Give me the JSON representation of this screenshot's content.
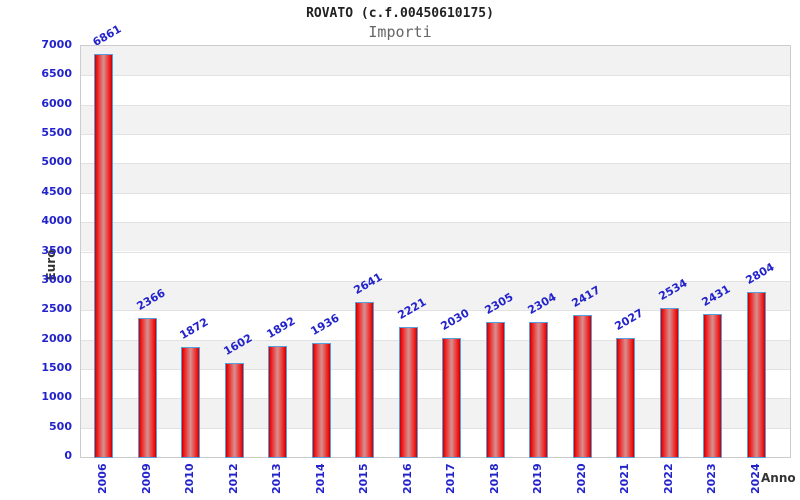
{
  "chart_data": {
    "type": "bar",
    "title": "ROVATO (c.f.00450610175)",
    "subtitle": "Importi",
    "xlabel": "Anno",
    "ylabel": "Euro",
    "categories": [
      "2006",
      "2009",
      "2010",
      "2012",
      "2013",
      "2014",
      "2015",
      "2016",
      "2017",
      "2018",
      "2019",
      "2020",
      "2021",
      "2022",
      "2023",
      "2024"
    ],
    "values": [
      6861,
      2366,
      1872,
      1602,
      1892,
      1936,
      2641,
      2221,
      2030,
      2305,
      2304,
      2417,
      2027,
      2534,
      2431,
      2804
    ],
    "ylim": [
      0,
      7000
    ],
    "ytick_step": 500,
    "grid": "horizontal-bands-alternating",
    "legend": "none",
    "colors": {
      "bar_fill_edge": "#f01818",
      "bar_fill_center": "#d89090",
      "bar_border": "#58a0dc",
      "tick_label": "#2323cc",
      "value_label": "#2323cc",
      "axis_title": "#333333",
      "band_gray": "#f2f2f2",
      "band_white": "#ffffff",
      "gridline": "#e2e2e2",
      "plot_border": "#cccccc",
      "title_color": "#222222",
      "subtitle_color": "#666666"
    }
  }
}
